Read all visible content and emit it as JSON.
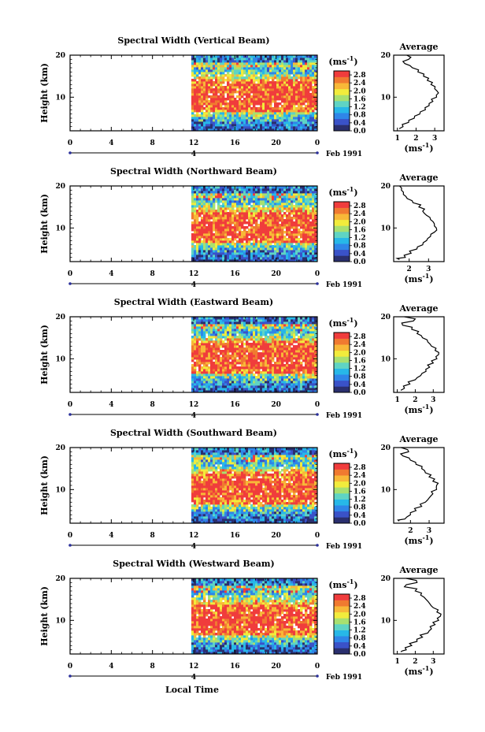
{
  "figure": {
    "x_axis_label": "Local Time",
    "y_axis_label": "Height (km)",
    "date_label": "Feb 1991",
    "day_label": "4",
    "colorbar_unit": "(ms",
    "colorbar_unit_exp": "-1",
    "colorbar_unit_close": ")",
    "avg_title": "Average",
    "avg_xlabel": "(ms",
    "avg_xlabel_exp": "-1",
    "avg_xlabel_close": ")",
    "palette": [
      "#2a2f6e",
      "#3a52c8",
      "#2f86e8",
      "#27b8e8",
      "#5fd4c4",
      "#a8e070",
      "#f2ec3c",
      "#f8b838",
      "#f07a30",
      "#f03c3c"
    ]
  },
  "chart_data": [
    {
      "type": "heatmap",
      "title": "Spectral Width (Vertical Beam)",
      "x_ticks": [
        "0",
        "4",
        "8",
        "12",
        "16",
        "20",
        "0"
      ],
      "y_ticks": [
        "20",
        "10"
      ],
      "colorbar_ticks": [
        "2.8",
        "2.4",
        "2.0",
        "1.6",
        "1.2",
        "0.8",
        "0.4",
        "0.0"
      ],
      "colorbar_range": [
        0.0,
        3.0
      ],
      "x_range_hours": [
        0,
        24
      ],
      "data_start_hour": 12,
      "y_range_km": [
        2,
        20
      ],
      "average_profile": {
        "x_ticks": [
          "1",
          "2",
          "3"
        ],
        "x_range": [
          0.8,
          3.5
        ],
        "heights_km": [
          2.5,
          3,
          4,
          5,
          6,
          7,
          8,
          9,
          10,
          11,
          12,
          13,
          14,
          15,
          16,
          17,
          18,
          19,
          20
        ],
        "values": [
          1.1,
          1.3,
          1.6,
          1.9,
          2.2,
          2.5,
          2.7,
          2.9,
          3.1,
          3.2,
          3.0,
          2.8,
          2.6,
          2.4,
          2.1,
          1.8,
          1.4,
          1.6,
          1.5
        ]
      }
    },
    {
      "type": "heatmap",
      "title": "Spectral Width (Northward Beam)",
      "x_ticks": [
        "0",
        "4",
        "8",
        "12",
        "16",
        "20",
        "0"
      ],
      "y_ticks": [
        "20",
        "10"
      ],
      "colorbar_ticks": [
        "2.8",
        "2.4",
        "2.0",
        "1.6",
        "1.2",
        "0.8",
        "0.4",
        "0.0"
      ],
      "colorbar_range": [
        0.0,
        3.0
      ],
      "x_range_hours": [
        0,
        24
      ],
      "data_start_hour": 12,
      "y_range_km": [
        2,
        20
      ],
      "average_profile": {
        "x_ticks": [
          "2",
          "3"
        ],
        "x_range": [
          1.2,
          3.8
        ],
        "heights_km": [
          2.5,
          3,
          4,
          5,
          6,
          7,
          8,
          9,
          10,
          11,
          12,
          13,
          14,
          15,
          16,
          17,
          18,
          19,
          20
        ],
        "values": [
          1.5,
          1.8,
          2.1,
          2.4,
          2.7,
          2.9,
          3.1,
          3.3,
          3.4,
          3.3,
          3.1,
          2.9,
          2.7,
          2.5,
          2.2,
          1.9,
          1.7,
          1.6,
          1.5
        ]
      }
    },
    {
      "type": "heatmap",
      "title": "Spectral Width (Eastward Beam)",
      "x_ticks": [
        "0",
        "4",
        "8",
        "12",
        "16",
        "20",
        "0"
      ],
      "y_ticks": [
        "20",
        "10"
      ],
      "colorbar_ticks": [
        "2.8",
        "2.4",
        "2.0",
        "1.6",
        "1.2",
        "0.8",
        "0.4",
        "0.0"
      ],
      "colorbar_range": [
        0.0,
        3.0
      ],
      "x_range_hours": [
        0,
        24
      ],
      "data_start_hour": 12,
      "y_range_km": [
        2,
        20
      ],
      "average_profile": {
        "x_ticks": [
          "1",
          "2",
          "3"
        ],
        "x_range": [
          0.8,
          3.6
        ],
        "heights_km": [
          2.5,
          3,
          4,
          5,
          6,
          7,
          8,
          9,
          10,
          11,
          12,
          13,
          14,
          15,
          16,
          17,
          18,
          19,
          20
        ],
        "values": [
          1.2,
          1.4,
          1.7,
          2.0,
          2.3,
          2.6,
          2.8,
          3.0,
          3.2,
          3.3,
          3.1,
          2.9,
          2.7,
          2.4,
          2.1,
          1.8,
          1.3,
          1.9,
          1.4
        ]
      }
    },
    {
      "type": "heatmap",
      "title": "Spectral Width (Southward Beam)",
      "x_ticks": [
        "0",
        "4",
        "8",
        "12",
        "16",
        "20",
        "0"
      ],
      "y_ticks": [
        "20",
        "10"
      ],
      "colorbar_ticks": [
        "2.8",
        "2.4",
        "2.0",
        "1.6",
        "1.2",
        "0.8",
        "0.4",
        "0.0"
      ],
      "colorbar_range": [
        0.0,
        3.0
      ],
      "x_range_hours": [
        0,
        24
      ],
      "data_start_hour": 12,
      "y_range_km": [
        2,
        20
      ],
      "average_profile": {
        "x_ticks": [
          "2",
          "3"
        ],
        "x_range": [
          1.1,
          3.8
        ],
        "heights_km": [
          2.5,
          3,
          4,
          5,
          6,
          7,
          8,
          9,
          10,
          11,
          12,
          13,
          14,
          15,
          16,
          17,
          18,
          19,
          20
        ],
        "values": [
          1.4,
          1.7,
          2.0,
          2.3,
          2.6,
          2.8,
          3.0,
          3.2,
          3.4,
          3.4,
          3.2,
          3.0,
          2.8,
          2.6,
          2.3,
          2.0,
          1.6,
          1.9,
          1.5
        ]
      }
    },
    {
      "type": "heatmap",
      "title": "Spectral Width (Westward Beam)",
      "x_ticks": [
        "0",
        "4",
        "8",
        "12",
        "16",
        "20",
        "0"
      ],
      "y_ticks": [
        "20",
        "10"
      ],
      "colorbar_ticks": [
        "2.8",
        "2.4",
        "2.0",
        "1.6",
        "1.2",
        "0.8",
        "0.4",
        "0.0"
      ],
      "colorbar_range": [
        0.0,
        3.0
      ],
      "x_range_hours": [
        0,
        24
      ],
      "data_start_hour": 12,
      "y_range_km": [
        2,
        20
      ],
      "average_profile": {
        "x_ticks": [
          "1",
          "2",
          "3"
        ],
        "x_range": [
          0.8,
          3.6
        ],
        "heights_km": [
          2.5,
          3,
          4,
          5,
          6,
          7,
          8,
          9,
          10,
          11,
          12,
          13,
          14,
          15,
          16,
          17,
          18,
          19,
          20
        ],
        "values": [
          1.2,
          1.5,
          1.8,
          2.1,
          2.4,
          2.7,
          2.9,
          3.1,
          3.3,
          3.4,
          3.2,
          3.0,
          2.8,
          2.6,
          2.3,
          2.0,
          1.4,
          2.1,
          1.5
        ]
      }
    }
  ]
}
